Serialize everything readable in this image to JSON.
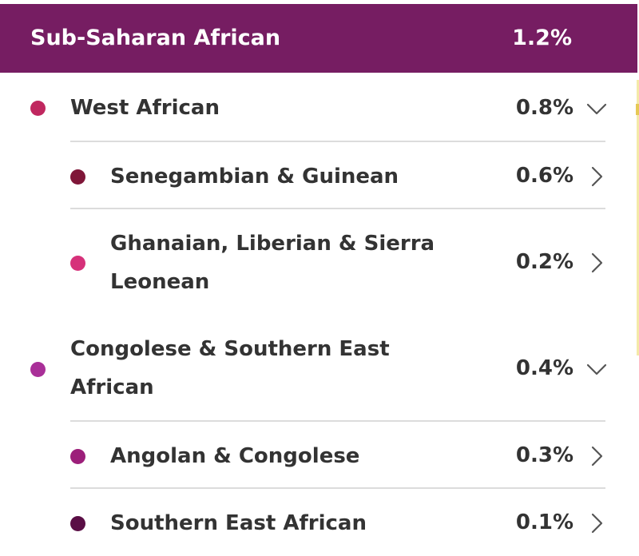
{
  "colors": {
    "header_bg": "#761d62",
    "west_african": "#c0275f",
    "senegambian": "#7f1638",
    "ghanaian": "#d6317a",
    "congolese_southern_east": "#a92f98",
    "angolan": "#9c1f7a",
    "southern_east": "#5a0e45"
  },
  "header": {
    "title": "Sub-Saharan African",
    "percent": "1.2%"
  },
  "rows": [
    {
      "label": "West African",
      "percent": "0.8%",
      "chevron": "chevron-down-icon"
    },
    {
      "label": "Senegambian & Guinean",
      "percent": "0.6%",
      "chevron": "chevron-right-icon"
    },
    {
      "label_line1": "Ghanaian, Liberian & Sierra",
      "label_line2": "Leonean",
      "percent": "0.2%",
      "chevron": "chevron-right-icon"
    },
    {
      "label_line1": "Congolese & Southern East",
      "label_line2": "African",
      "percent": "0.4%",
      "chevron": "chevron-down-icon"
    },
    {
      "label": "Angolan & Congolese",
      "percent": "0.3%",
      "chevron": "chevron-right-icon"
    },
    {
      "label": "Southern East African",
      "percent": "0.1%",
      "chevron": "chevron-right-icon"
    }
  ]
}
